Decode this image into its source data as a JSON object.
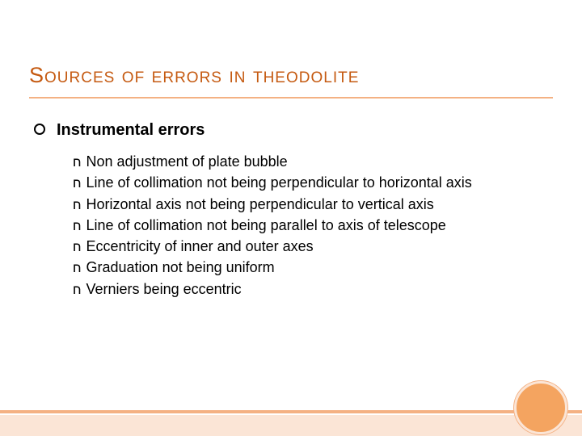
{
  "title": "Sources of errors in theodolite",
  "title_color": "#c55a11",
  "rule_color": "#f4b183",
  "level1_bullet_text": "Instrumental errors",
  "items": [
    "Non adjustment of plate bubble",
    "Line of collimation not being perpendicular to horizontal axis",
    "Horizontal axis not being perpendicular to vertical axis",
    "Line of collimation not being parallel to axis of telescope",
    "Eccentricity of inner and outer axes",
    "Graduation not being uniform",
    "Verniers being eccentric"
  ],
  "bottom_bar_color": "#fbe5d6",
  "thin_bar_color": "#f4b183",
  "circle_fill": "#f4a460",
  "circle_border": "#fbe5d6"
}
